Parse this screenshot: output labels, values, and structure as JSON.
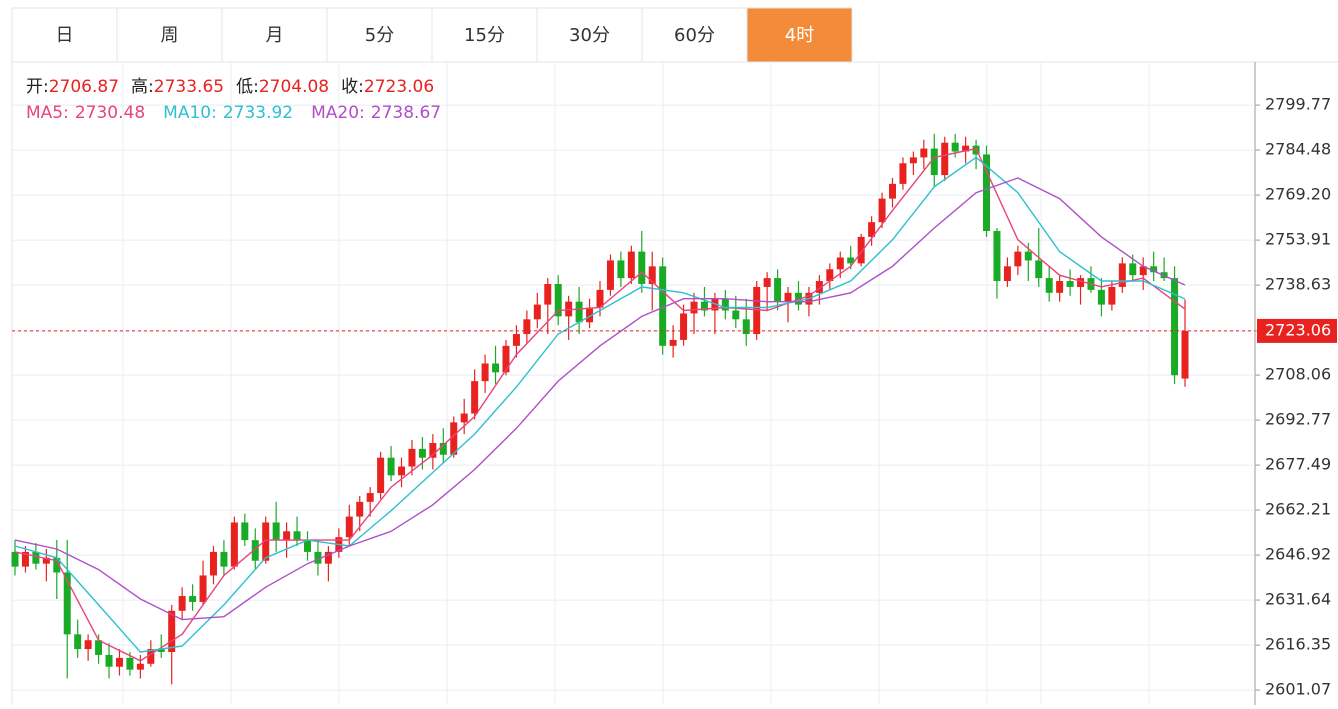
{
  "chart_data": {
    "type": "candlestick",
    "tabs": [
      "日",
      "周",
      "月",
      "5分",
      "15分",
      "30分",
      "60分",
      "4时"
    ],
    "active_tab": "4时",
    "ohlc_labels": [
      "开:",
      "高:",
      "低:",
      "收:"
    ],
    "up_color": "#e8221f",
    "down_color": "#1aab26",
    "ylim": [
      2596.0,
      2814.4
    ],
    "yticks": [
      2601.07,
      2616.35,
      2631.64,
      2646.92,
      2662.21,
      2677.49,
      2692.77,
      2708.06,
      2723.06,
      2738.63,
      2753.91,
      {
        "value": 2769.2,
        "label": "2769.20"
      },
      2784.48,
      2799.77
    ],
    "ohlc": [
      [
        2648,
        2652,
        2640,
        2643
      ],
      [
        2643,
        2650,
        2641,
        2648
      ],
      [
        2648,
        2651,
        2642,
        2644
      ],
      [
        2644,
        2649,
        2638,
        2646
      ],
      [
        2646,
        2652,
        2632,
        2641
      ],
      [
        2641,
        2652,
        2605,
        2620
      ],
      [
        2620,
        2625,
        2612,
        2615
      ],
      [
        2615,
        2620,
        2611,
        2618
      ],
      [
        2618,
        2620,
        2610,
        2613
      ],
      [
        2613,
        2617,
        2605,
        2609
      ],
      [
        2609,
        2615,
        2606,
        2612
      ],
      [
        2612,
        2614,
        2606,
        2608
      ],
      [
        2608,
        2613,
        2605,
        2610
      ],
      [
        2610,
        2618,
        2609,
        2615
      ],
      [
        2615,
        2620,
        2612,
        2614
      ],
      [
        2614,
        2630,
        2603,
        2628
      ],
      [
        2628,
        2636,
        2625,
        2633
      ],
      [
        2633,
        2637,
        2628,
        2631
      ],
      [
        2631,
        2645,
        2630,
        2640
      ],
      [
        2640,
        2650,
        2637,
        2648
      ],
      [
        2648,
        2652,
        2640,
        2643
      ],
      [
        2643,
        2660,
        2642,
        2658
      ],
      [
        2658,
        2661,
        2650,
        2652
      ],
      [
        2652,
        2656,
        2642,
        2645
      ],
      [
        2645,
        2660,
        2644,
        2658
      ],
      [
        2658,
        2665,
        2648,
        2652
      ],
      [
        2652,
        2658,
        2646,
        2655
      ],
      [
        2655,
        2660,
        2650,
        2652
      ],
      [
        2652,
        2655,
        2645,
        2648
      ],
      [
        2648,
        2652,
        2640,
        2644
      ],
      [
        2644,
        2650,
        2638,
        2648
      ],
      [
        2648,
        2656,
        2646,
        2653
      ],
      [
        2653,
        2664,
        2650,
        2660
      ],
      [
        2660,
        2667,
        2655,
        2665
      ],
      [
        2665,
        2670,
        2660,
        2668
      ],
      [
        2668,
        2682,
        2666,
        2680
      ],
      [
        2680,
        2684,
        2672,
        2674
      ],
      [
        2674,
        2680,
        2670,
        2677
      ],
      [
        2677,
        2686,
        2674,
        2683
      ],
      [
        2683,
        2687,
        2676,
        2680
      ],
      [
        2680,
        2688,
        2676,
        2685
      ],
      [
        2685,
        2690,
        2678,
        2681
      ],
      [
        2681,
        2694,
        2680,
        2692
      ],
      [
        2692,
        2700,
        2688,
        2695
      ],
      [
        2695,
        2710,
        2693,
        2706
      ],
      [
        2706,
        2715,
        2702,
        2712
      ],
      [
        2712,
        2718,
        2705,
        2709
      ],
      [
        2709,
        2720,
        2708,
        2718
      ],
      [
        2718,
        2725,
        2714,
        2722
      ],
      [
        2722,
        2730,
        2719,
        2727
      ],
      [
        2727,
        2736,
        2724,
        2732
      ],
      [
        2732,
        2741,
        2722,
        2739
      ],
      [
        2739,
        2742,
        2725,
        2728
      ],
      [
        2728,
        2735,
        2720,
        2733
      ],
      [
        2733,
        2738,
        2722,
        2726
      ],
      [
        2726,
        2734,
        2724,
        2731
      ],
      [
        2731,
        2740,
        2728,
        2737
      ],
      [
        2737,
        2749,
        2735,
        2747
      ],
      [
        2747,
        2750,
        2738,
        2741
      ],
      [
        2741,
        2752,
        2739,
        2750
      ],
      [
        2750,
        2757,
        2736,
        2739
      ],
      [
        2739,
        2750,
        2730,
        2745
      ],
      [
        2745,
        2748,
        2715,
        2718
      ],
      [
        2718,
        2725,
        2714,
        2720
      ],
      [
        2720,
        2732,
        2718,
        2729
      ],
      [
        2729,
        2736,
        2722,
        2733
      ],
      [
        2733,
        2738,
        2728,
        2730
      ],
      [
        2730,
        2736,
        2722,
        2734
      ],
      [
        2734,
        2737,
        2727,
        2730
      ],
      [
        2730,
        2735,
        2724,
        2727
      ],
      [
        2727,
        2734,
        2718,
        2722
      ],
      [
        2722,
        2740,
        2720,
        2738
      ],
      [
        2738,
        2743,
        2730,
        2741
      ],
      [
        2741,
        2744,
        2730,
        2733
      ],
      [
        2733,
        2738,
        2726,
        2736
      ],
      [
        2736,
        2740,
        2730,
        2732
      ],
      [
        2732,
        2738,
        2728,
        2736
      ],
      [
        2736,
        2742,
        2732,
        2740
      ],
      [
        2740,
        2746,
        2737,
        2744
      ],
      [
        2744,
        2750,
        2741,
        2748
      ],
      [
        2748,
        2752,
        2744,
        2746
      ],
      [
        2746,
        2756,
        2745,
        2755
      ],
      [
        2755,
        2762,
        2752,
        2760
      ],
      [
        2760,
        2770,
        2758,
        2768
      ],
      [
        2768,
        2775,
        2765,
        2773
      ],
      [
        2773,
        2782,
        2771,
        2780
      ],
      [
        2780,
        2784,
        2776,
        2782
      ],
      [
        2782,
        2788,
        2778,
        2785
      ],
      [
        2785,
        2790,
        2772,
        2776
      ],
      [
        2776,
        2789,
        2774,
        2787
      ],
      [
        2787,
        2790,
        2782,
        2784
      ],
      [
        2784,
        2789,
        2780,
        2786
      ],
      [
        2786,
        2788,
        2778,
        2783
      ],
      [
        2783,
        2786,
        2755,
        2757
      ],
      [
        2757,
        2758,
        2734,
        2740
      ],
      [
        2740,
        2748,
        2738,
        2745
      ],
      [
        2745,
        2752,
        2742,
        2750
      ],
      [
        2750,
        2753,
        2740,
        2747
      ],
      [
        2747,
        2758,
        2738,
        2741
      ],
      [
        2741,
        2745,
        2733,
        2736
      ],
      [
        2736,
        2742,
        2733,
        2740
      ],
      [
        2740,
        2744,
        2735,
        2738
      ],
      [
        2738,
        2742,
        2732,
        2741
      ],
      [
        2741,
        2745,
        2736,
        2737
      ],
      [
        2737,
        2741,
        2728,
        2732
      ],
      [
        2732,
        2740,
        2730,
        2738
      ],
      [
        2738,
        2748,
        2736,
        2746
      ],
      [
        2746,
        2749,
        2740,
        2742
      ],
      [
        2742,
        2748,
        2737,
        2745
      ],
      [
        2745,
        2750,
        2740,
        2743
      ],
      [
        2743,
        2748,
        2740,
        2741
      ],
      [
        2741,
        2745,
        2705,
        2708
      ],
      [
        2706.87,
        2733.65,
        2704.08,
        2723.06
      ]
    ],
    "ma": [
      {
        "name": "MA5:",
        "color": "#e8447c",
        "x": [
          0,
          4,
          8,
          12,
          16,
          20,
          24,
          28,
          32,
          36,
          40,
          44,
          48,
          52,
          56,
          60,
          64,
          68,
          72,
          76,
          80,
          84,
          88,
          92,
          96,
          100,
          104,
          108,
          112
        ],
        "values": [
          2648,
          2645,
          2618,
          2611,
          2620,
          2640,
          2652,
          2652,
          2652,
          2670,
          2681,
          2694,
          2715,
          2730,
          2731,
          2743,
          2730,
          2731,
          2730,
          2735,
          2745,
          2764,
          2782,
          2785,
          2754,
          2742,
          2738,
          2741,
          2730.48
        ]
      },
      {
        "name": "MA10:",
        "color": "#2ec0d0",
        "x": [
          0,
          4,
          8,
          12,
          16,
          20,
          24,
          28,
          32,
          36,
          40,
          44,
          48,
          52,
          56,
          60,
          64,
          68,
          72,
          76,
          80,
          84,
          88,
          92,
          96,
          100,
          104,
          108,
          112
        ],
        "values": [
          2650,
          2646,
          2630,
          2614,
          2616,
          2630,
          2646,
          2652,
          2650,
          2662,
          2675,
          2688,
          2704,
          2722,
          2730,
          2738,
          2736,
          2731,
          2731,
          2734,
          2740,
          2754,
          2772,
          2782,
          2770,
          2750,
          2740,
          2740,
          2733.92
        ]
      },
      {
        "name": "MA20:",
        "color": "#b04fc8",
        "x": [
          0,
          4,
          8,
          12,
          16,
          20,
          24,
          28,
          32,
          36,
          40,
          44,
          48,
          52,
          56,
          60,
          64,
          68,
          72,
          76,
          80,
          84,
          88,
          92,
          96,
          100,
          104,
          108,
          112
        ],
        "values": [
          2652,
          2649,
          2642,
          2632,
          2625,
          2626,
          2636,
          2644,
          2650,
          2655,
          2664,
          2676,
          2690,
          2706,
          2718,
          2728,
          2734,
          2734,
          2733,
          2733,
          2736,
          2745,
          2758,
          2770,
          2775,
          2768,
          2755,
          2745,
          2738.67
        ]
      }
    ]
  }
}
